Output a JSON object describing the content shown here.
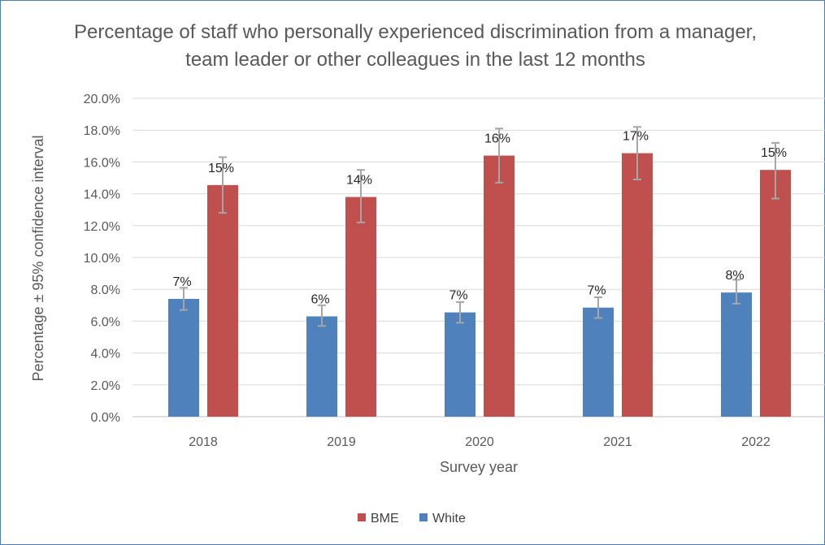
{
  "chart_data": {
    "type": "bar",
    "title": "Percentage of staff who personally experienced discrimination from a manager, team leader or other colleagues in the last 12 months",
    "xlabel": "Survey year",
    "ylabel": "Percentage ± 95% confidence interval",
    "categories": [
      "2018",
      "2019",
      "2020",
      "2021",
      "2022"
    ],
    "ylim": [
      0,
      0.2
    ],
    "yticks": [
      0.0,
      0.02,
      0.04,
      0.06,
      0.08,
      0.1,
      0.12,
      0.14,
      0.16,
      0.18,
      0.2
    ],
    "ytick_labels": [
      "0.0%",
      "2.0%",
      "4.0%",
      "6.0%",
      "8.0%",
      "10.0%",
      "12.0%",
      "14.0%",
      "16.0%",
      "18.0%",
      "20.0%"
    ],
    "grid": true,
    "legend_position": "bottom",
    "series": [
      {
        "name": "White",
        "color": "#4f81bd",
        "values": [
          0.074,
          0.063,
          0.0655,
          0.0685,
          0.078
        ],
        "ci_low": [
          0.067,
          0.057,
          0.059,
          0.062,
          0.071
        ],
        "ci_high": [
          0.081,
          0.07,
          0.072,
          0.075,
          0.086
        ],
        "data_labels": [
          "7%",
          "6%",
          "7%",
          "7%",
          "8%"
        ]
      },
      {
        "name": "BME",
        "color": "#c0504d",
        "values": [
          0.1455,
          0.138,
          0.164,
          0.1655,
          0.155
        ],
        "ci_low": [
          0.128,
          0.122,
          0.147,
          0.149,
          0.137
        ],
        "ci_high": [
          0.163,
          0.155,
          0.181,
          0.182,
          0.172
        ],
        "data_labels": [
          "15%",
          "14%",
          "16%",
          "17%",
          "15%"
        ]
      }
    ],
    "legend_order": [
      "BME",
      "White"
    ]
  },
  "colors": {
    "white_series": "#4f81bd",
    "bme_series": "#c0504d",
    "error_bar": "#a6a6a6",
    "grid": "#d9d9d9",
    "border": "#4a7fb5"
  }
}
